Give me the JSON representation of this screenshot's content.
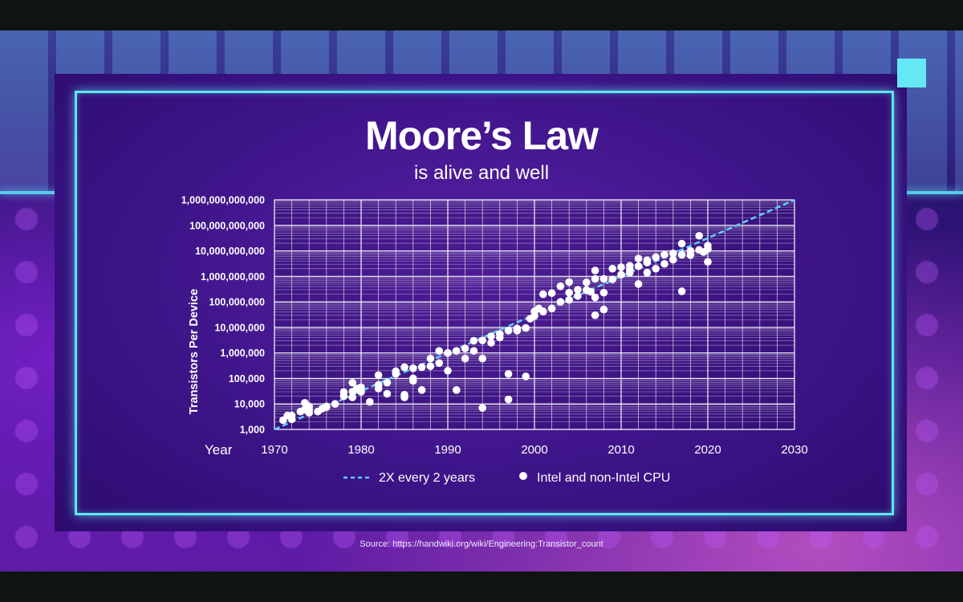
{
  "slide": {
    "title": "Moore’s Law",
    "subtitle": "is alive and well",
    "source": "Source: https://handwiki.org/wiki/Engineering:Transistor_count",
    "colors": {
      "accent": "#5fe6f2",
      "panel": "#3d1488",
      "trend": "#5fd0ff",
      "points": "#ffffff"
    }
  },
  "chart_data": {
    "type": "scatter",
    "xlabel": "Year",
    "ylabel": "Transistors Per Device",
    "xlim": [
      1970,
      2030
    ],
    "ylim": [
      1000,
      1000000000000
    ],
    "y_scale": "log",
    "grid": true,
    "x_ticks": [
      1970,
      1980,
      1990,
      2000,
      2010,
      2020,
      2030
    ],
    "x_tick_labels": [
      "1970",
      "1980",
      "1990",
      "2000",
      "2010",
      "2020",
      "2030"
    ],
    "y_ticks": [
      1000,
      10000,
      100000,
      1000000,
      10000000,
      100000000,
      1000000000,
      10000000000,
      100000000000,
      1000000000000
    ],
    "y_tick_labels": [
      "1,000",
      "10,000",
      "100,000",
      "1,000,000",
      "10,000,000",
      "100,000,000",
      "1,000,000,000",
      "10,000,000,000",
      "100,000,000,000",
      "1,000,000,000,000"
    ],
    "legend": [
      "2X every 2 years",
      "Intel and non-Intel CPU"
    ],
    "trend_line": {
      "name": "2X every 2 years",
      "x": [
        1970,
        2030
      ],
      "y": [
        1000,
        1000000000000
      ]
    },
    "series": [
      {
        "name": "Intel and non-Intel CPU",
        "x": [
          1971,
          1971.5,
          1972,
          1972,
          1973,
          1973.5,
          1973.5,
          1974,
          1974,
          1974,
          1975,
          1975.5,
          1976,
          1976,
          1977,
          1978,
          1978,
          1979,
          1979,
          1979,
          1979.5,
          1980,
          1980,
          1981,
          1982,
          1982,
          1982,
          1983,
          1983,
          1984,
          1984,
          1985,
          1985,
          1985,
          1986,
          1986,
          1986,
          1987,
          1987,
          1988,
          1988,
          1989,
          1989,
          1990,
          1990,
          1991,
          1991,
          1992,
          1992,
          1993,
          1993,
          1994,
          1994,
          1994,
          1995,
          1995,
          1996,
          1996,
          1997,
          1997,
          1997,
          1998,
          1998,
          1999,
          1999,
          1999.5,
          2000,
          2000,
          2000.5,
          2001,
          2001,
          2002,
          2002,
          2003,
          2003,
          2004,
          2004,
          2004,
          2005,
          2005,
          2006,
          2006,
          2006.5,
          2007,
          2007,
          2007,
          2007,
          2008,
          2008,
          2008,
          2009,
          2009,
          2010,
          2010,
          2011,
          2011,
          2011,
          2012,
          2012,
          2012,
          2013,
          2013,
          2013,
          2014,
          2014,
          2015,
          2015,
          2016,
          2016,
          2017,
          2017,
          2017,
          2018,
          2018,
          2019,
          2019,
          2019.5,
          2020,
          2020,
          2020
        ],
        "y": [
          2300,
          3500,
          3500,
          2500,
          5000,
          11000,
          6000,
          8000,
          6000,
          4500,
          5000,
          6500,
          8000,
          7500,
          10000,
          29000,
          20000,
          30000,
          18000,
          68000,
          40000,
          45000,
          30000,
          12000,
          55000,
          134000,
          40000,
          25000,
          68000,
          190000,
          150000,
          275000,
          23000,
          18000,
          250000,
          100000,
          80000,
          35000,
          275000,
          600000,
          300000,
          1200000,
          400000,
          1000000,
          200000,
          1200000,
          35000,
          1500000,
          600000,
          3000000,
          1200000,
          3100000,
          600000,
          7000,
          4500000,
          2500000,
          5500000,
          4000000,
          7500000,
          150000,
          15000,
          9000000,
          7500000,
          9500000,
          120000,
          22000000,
          42000000,
          28000000,
          55000000,
          200000000,
          42000000,
          220000000,
          55000000,
          410000000,
          100000000,
          600000000,
          230000000,
          120000000,
          300000000,
          170000000,
          290000000,
          580000000,
          250000000,
          1700000000,
          800000000,
          150000000,
          30000000,
          800000000,
          230000000,
          50000000,
          760000000,
          2000000000,
          1170000000,
          2300000000,
          2600000000,
          1900000000,
          1400000000,
          5000000000,
          2500000000,
          500000000,
          4300000000,
          1400000000,
          3500000000,
          5600000000,
          2000000000,
          7100000000,
          3100000000,
          8000000000,
          4500000000,
          19200000000,
          7000000000,
          260000000,
          10000000000,
          6800000000,
          39000000000,
          11000000000,
          9000000000,
          16000000000,
          11800000000,
          3700000000
        ]
      }
    ]
  }
}
